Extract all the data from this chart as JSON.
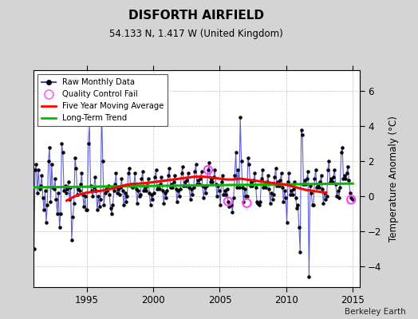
{
  "title": "DISFORTH AIRFIELD",
  "subtitle": "54.133 N, 1.417 W (United Kingdom)",
  "ylabel": "Temperature Anomaly (°C)",
  "credit": "Berkeley Earth",
  "ylim": [
    -5.2,
    7.2
  ],
  "xlim": [
    1991.0,
    2015.5
  ],
  "xticks": [
    1995,
    2000,
    2005,
    2010,
    2015
  ],
  "yticks": [
    -4,
    -2,
    0,
    2,
    4,
    6
  ],
  "background_color": "#d4d4d4",
  "plot_bg_color": "#ffffff",
  "raw_color": "#4444cc",
  "dot_color": "#000000",
  "ma_color": "#ff0000",
  "trend_color": "#00bb00",
  "qc_color": "#ff44ff",
  "raw_times": [
    1991.042,
    1991.125,
    1991.208,
    1991.292,
    1991.375,
    1991.458,
    1991.542,
    1991.625,
    1991.708,
    1991.792,
    1991.875,
    1991.958,
    1992.042,
    1992.125,
    1992.208,
    1992.292,
    1992.375,
    1992.458,
    1992.542,
    1992.625,
    1992.708,
    1992.792,
    1992.875,
    1992.958,
    1993.042,
    1993.125,
    1993.208,
    1993.292,
    1993.375,
    1993.458,
    1993.542,
    1993.625,
    1993.708,
    1993.792,
    1993.875,
    1993.958,
    1994.042,
    1994.125,
    1994.208,
    1994.292,
    1994.375,
    1994.458,
    1994.542,
    1994.625,
    1994.708,
    1994.792,
    1994.875,
    1994.958,
    1995.042,
    1995.125,
    1995.208,
    1995.292,
    1995.375,
    1995.458,
    1995.542,
    1995.625,
    1995.708,
    1995.792,
    1995.875,
    1995.958,
    1996.042,
    1996.125,
    1996.208,
    1996.292,
    1996.375,
    1996.458,
    1996.542,
    1996.625,
    1996.708,
    1996.792,
    1996.875,
    1996.958,
    1997.042,
    1997.125,
    1997.208,
    1997.292,
    1997.375,
    1997.458,
    1997.542,
    1997.625,
    1997.708,
    1997.792,
    1997.875,
    1997.958,
    1998.042,
    1998.125,
    1998.208,
    1998.292,
    1998.375,
    1998.458,
    1998.542,
    1998.625,
    1998.708,
    1998.792,
    1998.875,
    1998.958,
    1999.042,
    1999.125,
    1999.208,
    1999.292,
    1999.375,
    1999.458,
    1999.542,
    1999.625,
    1999.708,
    1999.792,
    1999.875,
    1999.958,
    2000.042,
    2000.125,
    2000.208,
    2000.292,
    2000.375,
    2000.458,
    2000.542,
    2000.625,
    2000.708,
    2000.792,
    2000.875,
    2000.958,
    2001.042,
    2001.125,
    2001.208,
    2001.292,
    2001.375,
    2001.458,
    2001.542,
    2001.625,
    2001.708,
    2001.792,
    2001.875,
    2001.958,
    2002.042,
    2002.125,
    2002.208,
    2002.292,
    2002.375,
    2002.458,
    2002.542,
    2002.625,
    2002.708,
    2002.792,
    2002.875,
    2002.958,
    2003.042,
    2003.125,
    2003.208,
    2003.292,
    2003.375,
    2003.458,
    2003.542,
    2003.625,
    2003.708,
    2003.792,
    2003.875,
    2003.958,
    2004.042,
    2004.125,
    2004.208,
    2004.292,
    2004.375,
    2004.458,
    2004.542,
    2004.625,
    2004.708,
    2004.792,
    2004.875,
    2004.958,
    2005.042,
    2005.125,
    2005.208,
    2005.292,
    2005.375,
    2005.458,
    2005.542,
    2005.625,
    2005.708,
    2005.792,
    2005.875,
    2005.958,
    2006.042,
    2006.125,
    2006.208,
    2006.292,
    2006.375,
    2006.458,
    2006.542,
    2006.625,
    2006.708,
    2006.792,
    2006.875,
    2006.958,
    2007.042,
    2007.125,
    2007.208,
    2007.292,
    2007.375,
    2007.458,
    2007.542,
    2007.625,
    2007.708,
    2007.792,
    2007.875,
    2007.958,
    2008.042,
    2008.125,
    2008.208,
    2008.292,
    2008.375,
    2008.458,
    2008.542,
    2008.625,
    2008.708,
    2008.792,
    2008.875,
    2008.958,
    2009.042,
    2009.125,
    2009.208,
    2009.292,
    2009.375,
    2009.458,
    2009.542,
    2009.625,
    2009.708,
    2009.792,
    2009.875,
    2009.958,
    2010.042,
    2010.125,
    2010.208,
    2010.292,
    2010.375,
    2010.458,
    2010.542,
    2010.625,
    2010.708,
    2010.792,
    2010.875,
    2010.958,
    2011.042,
    2011.125,
    2011.208,
    2011.292,
    2011.375,
    2011.458,
    2011.542,
    2011.625,
    2011.708,
    2011.792,
    2011.875,
    2011.958,
    2012.042,
    2012.125,
    2012.208,
    2012.292,
    2012.375,
    2012.458,
    2012.542,
    2012.625,
    2012.708,
    2012.792,
    2012.875,
    2012.958,
    2013.042,
    2013.125,
    2013.208,
    2013.292,
    2013.375,
    2013.458,
    2013.542,
    2013.625,
    2013.708,
    2013.792,
    2013.875,
    2013.958,
    2014.042,
    2014.125,
    2014.208,
    2014.292,
    2014.375,
    2014.458,
    2014.542,
    2014.625,
    2014.708,
    2014.792,
    2014.875,
    2014.958
  ],
  "raw_values": [
    -3.0,
    1.5,
    1.8,
    0.2,
    1.5,
    0.4,
    0.6,
    1.2,
    -0.1,
    -0.8,
    0.3,
    -1.5,
    -0.5,
    2.0,
    2.8,
    -0.3,
    1.8,
    0.5,
    0.4,
    1.0,
    -0.2,
    -1.0,
    0.2,
    -1.8,
    -1.0,
    3.0,
    2.5,
    0.3,
    0.6,
    0.2,
    0.4,
    0.8,
    -0.2,
    0.5,
    -2.5,
    -1.2,
    -0.4,
    2.2,
    1.6,
    0.1,
    0.4,
    0.3,
    0.7,
    1.3,
    0.1,
    -0.6,
    0.0,
    -0.8,
    -0.8,
    3.0,
    4.1,
    0.6,
    0.3,
    0.0,
    0.5,
    1.1,
    0.3,
    -0.8,
    0.0,
    -0.6,
    -0.2,
    5.0,
    2.0,
    -0.5,
    0.2,
    0.4,
    0.3,
    0.6,
    0.1,
    -0.7,
    -1.0,
    -0.5,
    0.3,
    0.7,
    1.3,
    0.2,
    0.4,
    0.1,
    0.5,
    1.0,
    0.3,
    -0.5,
    0.2,
    -0.3,
    0.0,
    1.3,
    1.6,
    0.6,
    0.7,
    0.5,
    0.6,
    1.3,
    0.4,
    -0.4,
    0.3,
    0.0,
    0.1,
    1.0,
    1.4,
    0.3,
    0.5,
    0.3,
    0.6,
    1.0,
    0.2,
    -0.5,
    0.1,
    -0.2,
    0.2,
    1.1,
    1.5,
    0.4,
    0.6,
    0.4,
    0.7,
    1.1,
    0.3,
    -0.4,
    0.2,
    -0.1,
    0.3,
    1.2,
    1.6,
    0.5,
    0.7,
    0.5,
    0.8,
    1.2,
    0.4,
    -0.3,
    0.3,
    0.0,
    0.4,
    1.3,
    1.7,
    0.6,
    0.8,
    0.6,
    0.9,
    1.3,
    0.5,
    -0.2,
    0.4,
    0.1,
    0.5,
    1.4,
    1.8,
    0.7,
    0.9,
    0.7,
    1.0,
    1.4,
    0.6,
    -0.1,
    0.5,
    0.2,
    0.6,
    1.5,
    1.9,
    0.8,
    1.0,
    0.8,
    1.1,
    1.5,
    0.7,
    0.0,
    0.6,
    0.3,
    -0.5,
    0.8,
    1.2,
    0.1,
    0.3,
    0.1,
    0.4,
    -0.3,
    -0.6,
    -0.5,
    -0.5,
    -0.9,
    -0.1,
    1.2,
    2.5,
    0.5,
    1.5,
    0.5,
    4.5,
    2.0,
    0.5,
    -0.3,
    0.4,
    0.0,
    0.0,
    2.2,
    1.8,
    0.6,
    0.8,
    0.6,
    0.9,
    1.3,
    0.5,
    -0.3,
    -0.4,
    -0.5,
    -0.3,
    1.0,
    1.5,
    0.5,
    0.7,
    0.5,
    0.8,
    1.2,
    0.4,
    -0.4,
    0.2,
    -0.2,
    0.1,
    1.1,
    1.6,
    0.6,
    0.8,
    0.6,
    0.9,
    1.3,
    0.5,
    -0.3,
    0.3,
    -0.1,
    -1.5,
    0.8,
    1.3,
    0.1,
    0.3,
    0.1,
    0.4,
    0.8,
    -0.1,
    -0.7,
    -0.5,
    -1.8,
    -3.2,
    3.8,
    3.5,
    0.7,
    0.9,
    0.7,
    1.0,
    1.4,
    -4.6,
    0.6,
    0.2,
    -0.5,
    -0.5,
    1.0,
    1.5,
    0.5,
    0.7,
    0.5,
    0.8,
    1.2,
    0.4,
    -0.4,
    0.2,
    -0.2,
    0.0,
    1.5,
    2.0,
    0.8,
    1.0,
    0.8,
    1.1,
    1.5,
    0.7,
    0.0,
    0.3,
    -0.1,
    0.5,
    2.5,
    2.8,
    1.0,
    1.2,
    1.0,
    1.3,
    1.7,
    0.9,
    0.2,
    -0.1,
    -0.2
  ],
  "qc_fail_times": [
    2004.125,
    2005.625,
    2007.042,
    2014.875
  ],
  "qc_fail_values": [
    1.5,
    -0.3,
    -0.4,
    -0.2
  ],
  "moving_avg_times": [
    1993.5,
    1994.0,
    1994.5,
    1995.0,
    1995.5,
    1996.0,
    1996.5,
    1997.0,
    1997.5,
    1998.0,
    1998.5,
    1999.0,
    1999.5,
    2000.0,
    2000.5,
    2001.0,
    2001.5,
    2002.0,
    2002.5,
    2003.0,
    2003.5,
    2004.0,
    2004.5,
    2005.0,
    2005.5,
    2006.0,
    2006.5,
    2007.0,
    2007.5,
    2008.0,
    2008.5,
    2009.0,
    2009.5,
    2010.0,
    2010.5,
    2011.0,
    2011.5,
    2012.0,
    2012.5,
    2013.0
  ],
  "moving_avg_values": [
    -0.25,
    -0.05,
    0.1,
    0.2,
    0.25,
    0.3,
    0.35,
    0.45,
    0.55,
    0.65,
    0.7,
    0.72,
    0.75,
    0.8,
    0.85,
    0.9,
    0.95,
    1.0,
    1.05,
    1.1,
    1.12,
    1.1,
    1.05,
    1.0,
    0.95,
    0.95,
    1.0,
    0.95,
    0.9,
    0.85,
    0.8,
    0.75,
    0.7,
    0.65,
    0.55,
    0.45,
    0.35,
    0.3,
    0.25,
    0.2
  ],
  "trend_times": [
    1991.0,
    2015.0
  ],
  "trend_values": [
    0.5,
    0.72
  ]
}
